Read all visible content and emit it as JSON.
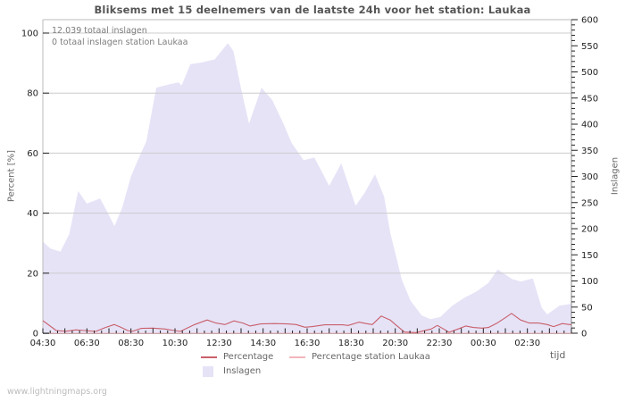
{
  "page": {
    "watermark": "www.lightningmaps.org"
  },
  "chart_data": {
    "type": "area",
    "title": "Bliksems met 15 deelnemers van de laatste 24h voor het station: Laukaa",
    "annotations": [
      "12.039 totaal inslagen",
      "0 totaal inslagen station Laukaa"
    ],
    "grid": true,
    "legend_position": "bottom",
    "x_axis": {
      "label": "tijd",
      "start_hour": 4.5,
      "end_hour": 28.5,
      "tick_hours": [
        4.5,
        6.5,
        8.5,
        10.5,
        12.5,
        14.5,
        16.5,
        18.5,
        20.5,
        22.5,
        24.5,
        26.5
      ],
      "tick_labels": [
        "04:30",
        "06:30",
        "08:30",
        "10:30",
        "12:30",
        "14:30",
        "16:30",
        "18:30",
        "20:30",
        "22:30",
        "00:30",
        "02:30"
      ]
    },
    "y_left": {
      "label": "Percent  [%]",
      "ticks": [
        0,
        20,
        40,
        60,
        80,
        100
      ],
      "range": [
        0,
        104.5
      ]
    },
    "y_right": {
      "label": "Inslagen",
      "ticks": [
        0,
        50,
        100,
        150,
        200,
        250,
        300,
        350,
        400,
        450,
        500,
        550,
        600
      ],
      "range": [
        0,
        600
      ]
    },
    "colors": {
      "grid": "#cccccc",
      "axis": "#999999",
      "tick": "#222222",
      "frame": "#bbbbbb"
    },
    "series": [
      {
        "name": "Inslagen",
        "type": "area",
        "axis": "right",
        "color": "#e6e3f7",
        "points": [
          [
            4.5,
            175
          ],
          [
            4.85,
            162
          ],
          [
            5.3,
            156
          ],
          [
            5.7,
            190
          ],
          [
            6.1,
            272
          ],
          [
            6.5,
            248
          ],
          [
            7.1,
            258
          ],
          [
            7.45,
            230
          ],
          [
            7.75,
            205
          ],
          [
            8.1,
            240
          ],
          [
            8.5,
            300
          ],
          [
            8.8,
            330
          ],
          [
            9.2,
            367
          ],
          [
            9.65,
            470
          ],
          [
            10.3,
            477
          ],
          [
            10.66,
            480
          ],
          [
            10.8,
            474
          ],
          [
            11.2,
            515
          ],
          [
            11.7,
            518
          ],
          [
            12.3,
            524
          ],
          [
            12.9,
            555
          ],
          [
            13.15,
            540
          ],
          [
            13.5,
            468
          ],
          [
            13.86,
            401
          ],
          [
            14.43,
            470
          ],
          [
            14.92,
            446
          ],
          [
            15.4,
            403
          ],
          [
            15.8,
            364
          ],
          [
            16.34,
            331
          ],
          [
            16.83,
            336
          ],
          [
            17.5,
            282
          ],
          [
            18.05,
            325
          ],
          [
            18.7,
            244
          ],
          [
            19.1,
            268
          ],
          [
            19.58,
            304
          ],
          [
            20.0,
            261
          ],
          [
            20.27,
            193
          ],
          [
            20.8,
            102
          ],
          [
            21.2,
            62
          ],
          [
            21.7,
            34
          ],
          [
            22.1,
            27
          ],
          [
            22.54,
            31
          ],
          [
            23.1,
            53
          ],
          [
            23.64,
            68
          ],
          [
            24.16,
            79
          ],
          [
            24.73,
            96
          ],
          [
            25.15,
            122
          ],
          [
            25.55,
            111
          ],
          [
            25.8,
            104
          ],
          [
            26.2,
            99
          ],
          [
            26.75,
            105
          ],
          [
            27.16,
            48
          ],
          [
            27.4,
            36
          ],
          [
            27.97,
            53
          ],
          [
            28.5,
            56
          ]
        ]
      },
      {
        "name": "Percentage",
        "type": "line",
        "axis": "left",
        "color": "#c95f6a",
        "points": [
          [
            4.5,
            4.2
          ],
          [
            5.11,
            0.9
          ],
          [
            5.55,
            0.65
          ],
          [
            6.0,
            1.1
          ],
          [
            6.4,
            0.9
          ],
          [
            6.9,
            0.6
          ],
          [
            7.34,
            1.9
          ],
          [
            7.74,
            2.9
          ],
          [
            8.0,
            2.1
          ],
          [
            8.35,
            0.9
          ],
          [
            8.55,
            0.6
          ],
          [
            8.96,
            1.6
          ],
          [
            9.5,
            1.7
          ],
          [
            10.05,
            1.4
          ],
          [
            10.46,
            0.9
          ],
          [
            10.74,
            0.6
          ],
          [
            11.39,
            2.9
          ],
          [
            11.96,
            4.4
          ],
          [
            12.36,
            3.4
          ],
          [
            12.77,
            2.9
          ],
          [
            13.17,
            4.1
          ],
          [
            13.58,
            3.4
          ],
          [
            13.9,
            2.4
          ],
          [
            14.39,
            3.1
          ],
          [
            15.0,
            3.2
          ],
          [
            15.6,
            3.1
          ],
          [
            16.0,
            2.9
          ],
          [
            16.4,
            2.0
          ],
          [
            16.74,
            2.2
          ],
          [
            17.3,
            2.8
          ],
          [
            18.1,
            2.8
          ],
          [
            18.36,
            2.6
          ],
          [
            18.85,
            3.7
          ],
          [
            19.17,
            3.2
          ],
          [
            19.46,
            2.9
          ],
          [
            19.86,
            5.7
          ],
          [
            20.27,
            4.4
          ],
          [
            20.51,
            2.9
          ],
          [
            20.92,
            0.4
          ],
          [
            21.45,
            0.2
          ],
          [
            22.13,
            1.4
          ],
          [
            22.41,
            2.6
          ],
          [
            22.7,
            1.4
          ],
          [
            22.94,
            0.3
          ],
          [
            23.35,
            1.4
          ],
          [
            23.71,
            2.4
          ],
          [
            24.04,
            1.9
          ],
          [
            24.44,
            1.7
          ],
          [
            24.73,
            1.9
          ],
          [
            25.13,
            3.4
          ],
          [
            25.54,
            5.4
          ],
          [
            25.78,
            6.6
          ],
          [
            26.19,
            4.4
          ],
          [
            26.59,
            3.4
          ],
          [
            27.0,
            3.4
          ],
          [
            27.4,
            2.9
          ],
          [
            27.69,
            2.2
          ],
          [
            28.09,
            3.2
          ],
          [
            28.5,
            2.8
          ]
        ]
      },
      {
        "name": "Percentage station Laukaa",
        "type": "line",
        "axis": "left",
        "color": "#f3b6bc",
        "points": [
          [
            4.5,
            0
          ],
          [
            28.5,
            0
          ]
        ]
      }
    ]
  }
}
